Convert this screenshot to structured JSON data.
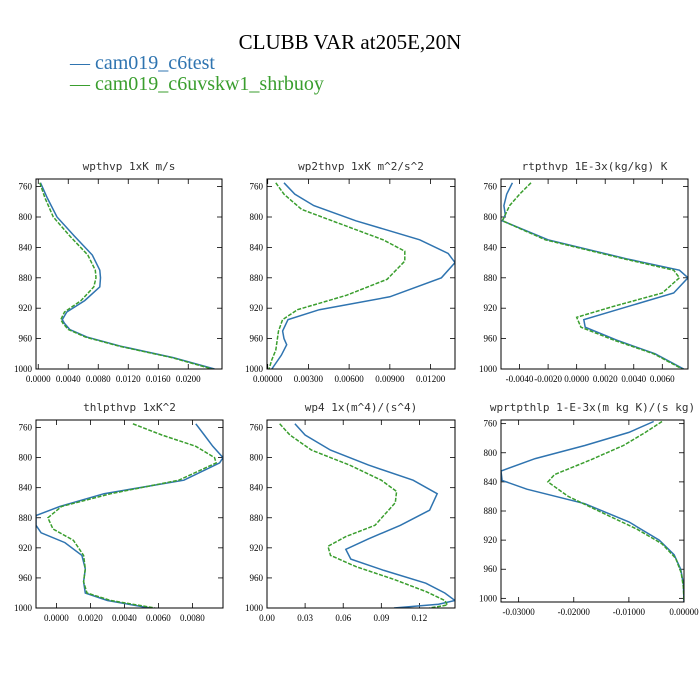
{
  "title": "CLUBB VAR at205E,20N",
  "legend": [
    {
      "label": "cam019_c6test",
      "color": "#2f74b0",
      "dash": "solid"
    },
    {
      "label": "cam019_c6uvskw1_shrbuoy",
      "color": "#3a9e2e",
      "dash": "dashed"
    }
  ],
  "chart_data": [
    {
      "type": "line",
      "title": "wpthvp  1xK m/s",
      "xlim": [
        -0.0003,
        0.0245
      ],
      "ylim": [
        750,
        1000
      ],
      "xticks": [
        0.0,
        0.004,
        0.008,
        0.012,
        0.016,
        0.02
      ],
      "xtick_labels": [
        "0.0000",
        "0.0040",
        "0.0080",
        "0.0120",
        "0.0160",
        "0.0200"
      ],
      "yticks": [
        760,
        800,
        840,
        880,
        920,
        960,
        1000
      ],
      "series": [
        {
          "name": "cam019_c6test",
          "points": [
            [
              0.0003,
              755
            ],
            [
              0.0012,
              775
            ],
            [
              0.0025,
              800
            ],
            [
              0.0048,
              825
            ],
            [
              0.0072,
              850
            ],
            [
              0.0082,
              870
            ],
            [
              0.0083,
              880
            ],
            [
              0.0082,
              892
            ],
            [
              0.0062,
              910
            ],
            [
              0.0038,
              925
            ],
            [
              0.0032,
              935
            ],
            [
              0.0035,
              940
            ],
            [
              0.0042,
              948
            ],
            [
              0.0065,
              958
            ],
            [
              0.011,
              970
            ],
            [
              0.018,
              985
            ],
            [
              0.0235,
              1000
            ]
          ]
        },
        {
          "name": "cam019_c6uvskw1_shrbuoy",
          "points": [
            [
              0.0002,
              755
            ],
            [
              0.0009,
              775
            ],
            [
              0.002,
              800
            ],
            [
              0.0042,
              825
            ],
            [
              0.0066,
              850
            ],
            [
              0.0076,
              870
            ],
            [
              0.0077,
              880
            ],
            [
              0.0074,
              892
            ],
            [
              0.0057,
              910
            ],
            [
              0.0035,
              925
            ],
            [
              0.003,
              935
            ],
            [
              0.0033,
              940
            ],
            [
              0.004,
              948
            ],
            [
              0.0063,
              958
            ],
            [
              0.0108,
              970
            ],
            [
              0.0178,
              985
            ],
            [
              0.0232,
              1000
            ]
          ]
        }
      ]
    },
    {
      "type": "line",
      "title": "wp2thvp  1xK m^2/s^2",
      "xlim": [
        -5e-05,
        0.0138
      ],
      "ylim": [
        750,
        1000
      ],
      "xticks": [
        0.0,
        0.003,
        0.006,
        0.009,
        0.012
      ],
      "xtick_labels": [
        "0.00000",
        "0.00300",
        "0.00600",
        "0.00900",
        "0.01200"
      ],
      "yticks": [
        760,
        800,
        840,
        880,
        920,
        960,
        1000
      ],
      "series": [
        {
          "name": "cam019_c6test",
          "points": [
            [
              0.0012,
              755
            ],
            [
              0.002,
              770
            ],
            [
              0.0034,
              785
            ],
            [
              0.0065,
              805
            ],
            [
              0.0112,
              830
            ],
            [
              0.0133,
              848
            ],
            [
              0.0138,
              860
            ],
            [
              0.0128,
              880
            ],
            [
              0.009,
              905
            ],
            [
              0.0038,
              922
            ],
            [
              0.0015,
              935
            ],
            [
              0.0011,
              950
            ],
            [
              0.0012,
              960
            ],
            [
              0.0014,
              968
            ],
            [
              0.001,
              982
            ],
            [
              0.0003,
              1000
            ]
          ]
        },
        {
          "name": "cam019_c6uvskw1_shrbuoy",
          "points": [
            [
              0.0006,
              755
            ],
            [
              0.0012,
              770
            ],
            [
              0.0025,
              790
            ],
            [
              0.0055,
              810
            ],
            [
              0.0085,
              830
            ],
            [
              0.0101,
              845
            ],
            [
              0.0101,
              858
            ],
            [
              0.0088,
              882
            ],
            [
              0.0058,
              903
            ],
            [
              0.0022,
              922
            ],
            [
              0.0011,
              935
            ],
            [
              0.0008,
              950
            ],
            [
              0.0007,
              962
            ],
            [
              0.0006,
              975
            ],
            [
              0.0003,
              988
            ],
            [
              0.0001,
              1000
            ]
          ]
        }
      ]
    },
    {
      "type": "line",
      "title": "rtpthvp  1E-3x(kg/kg) K",
      "xlim": [
        -0.0053,
        0.0078
      ],
      "ylim": [
        750,
        1000
      ],
      "xticks": [
        -0.004,
        -0.002,
        0.0,
        0.002,
        0.004,
        0.006
      ],
      "xtick_labels": [
        "-0.0040",
        "-0.0020",
        "0.0000",
        "0.0020",
        "0.0040",
        "0.0060"
      ],
      "yticks": [
        760,
        800,
        840,
        880,
        920,
        960,
        1000
      ],
      "series": [
        {
          "name": "cam019_c6test",
          "points": [
            [
              -0.0045,
              755
            ],
            [
              -0.0049,
              770
            ],
            [
              -0.0051,
              785
            ],
            [
              -0.005,
              797
            ],
            [
              -0.0052,
              805
            ],
            [
              -0.002,
              830
            ],
            [
              0.0035,
              855
            ],
            [
              0.0072,
              870
            ],
            [
              0.0078,
              880
            ],
            [
              0.0068,
              900
            ],
            [
              0.0032,
              920
            ],
            [
              0.0005,
              935
            ],
            [
              0.0006,
              945
            ],
            [
              0.0028,
              962
            ],
            [
              0.0055,
              980
            ],
            [
              0.0075,
              1000
            ]
          ]
        },
        {
          "name": "cam019_c6uvskw1_shrbuoy",
          "points": [
            [
              -0.0032,
              755
            ],
            [
              -0.004,
              770
            ],
            [
              -0.0047,
              785
            ],
            [
              -0.005,
              797
            ],
            [
              -0.0052,
              805
            ],
            [
              -0.0022,
              830
            ],
            [
              0.0033,
              855
            ],
            [
              0.0068,
              870
            ],
            [
              0.0072,
              880
            ],
            [
              0.006,
              900
            ],
            [
              0.0025,
              918
            ],
            [
              0.0,
              932
            ],
            [
              0.0003,
              945
            ],
            [
              0.0026,
              962
            ],
            [
              0.0054,
              980
            ],
            [
              0.0074,
              1000
            ]
          ]
        }
      ]
    },
    {
      "type": "line",
      "title": "thlpthvp  1xK^2",
      "xlim": [
        -0.0012,
        0.0098
      ],
      "ylim": [
        750,
        1000
      ],
      "xticks": [
        0.0,
        0.002,
        0.004,
        0.006,
        0.008
      ],
      "xtick_labels": [
        "0.0000",
        "0.0020",
        "0.0040",
        "0.0060",
        "0.0080"
      ],
      "yticks": [
        760,
        800,
        840,
        880,
        920,
        960,
        1000
      ],
      "series": [
        {
          "name": "cam019_c6test",
          "points": [
            [
              0.0082,
              755
            ],
            [
              0.0087,
              770
            ],
            [
              0.0092,
              785
            ],
            [
              0.0098,
              800
            ],
            [
              0.0096,
              807
            ],
            [
              0.0075,
              830
            ],
            [
              0.0028,
              848
            ],
            [
              0.0002,
              865
            ],
            [
              -0.0012,
              877
            ],
            [
              -0.0012,
              890
            ],
            [
              -0.0009,
              900
            ],
            [
              0.0005,
              913
            ],
            [
              0.0015,
              930
            ],
            [
              0.0017,
              948
            ],
            [
              0.0016,
              965
            ],
            [
              0.0017,
              980
            ],
            [
              0.003,
              990
            ],
            [
              0.0055,
              1000
            ]
          ]
        },
        {
          "name": "cam019_c6uvskw1_shrbuoy",
          "points": [
            [
              0.0045,
              755
            ],
            [
              0.0062,
              770
            ],
            [
              0.0082,
              785
            ],
            [
              0.0093,
              800
            ],
            [
              0.0094,
              807
            ],
            [
              0.0072,
              830
            ],
            [
              0.0032,
              848
            ],
            [
              0.0003,
              865
            ],
            [
              -0.0005,
              880
            ],
            [
              -0.0002,
              895
            ],
            [
              0.001,
              910
            ],
            [
              0.0016,
              930
            ],
            [
              0.0017,
              948
            ],
            [
              0.0016,
              965
            ],
            [
              0.0018,
              980
            ],
            [
              0.0032,
              990
            ],
            [
              0.0058,
              1000
            ]
          ]
        }
      ]
    },
    {
      "type": "line",
      "title": "wp4  1x(m^4)/(s^4)",
      "xlim": [
        -0.0,
        0.148
      ],
      "ylim": [
        750,
        1000
      ],
      "xticks": [
        0.0,
        0.03,
        0.06,
        0.09,
        0.12
      ],
      "xtick_labels": [
        "0.00",
        "0.03",
        "0.06",
        "0.09",
        "0.12"
      ],
      "yticks": [
        760,
        800,
        840,
        880,
        920,
        960,
        1000
      ],
      "series": [
        {
          "name": "cam019_c6test",
          "points": [
            [
              0.022,
              755
            ],
            [
              0.03,
              770
            ],
            [
              0.05,
              790
            ],
            [
              0.08,
              810
            ],
            [
              0.115,
              830
            ],
            [
              0.134,
              848
            ],
            [
              0.128,
              870
            ],
            [
              0.105,
              890
            ],
            [
              0.08,
              908
            ],
            [
              0.062,
              922
            ],
            [
              0.066,
              935
            ],
            [
              0.092,
              950
            ],
            [
              0.125,
              967
            ],
            [
              0.14,
              980
            ],
            [
              0.148,
              990
            ],
            [
              0.135,
              995
            ],
            [
              0.1,
              1000
            ]
          ]
        },
        {
          "name": "cam019_c6uvskw1_shrbuoy",
          "points": [
            [
              0.01,
              755
            ],
            [
              0.018,
              770
            ],
            [
              0.035,
              790
            ],
            [
              0.065,
              810
            ],
            [
              0.09,
              830
            ],
            [
              0.102,
              845
            ],
            [
              0.101,
              860
            ],
            [
              0.085,
              890
            ],
            [
              0.062,
              905
            ],
            [
              0.048,
              918
            ],
            [
              0.05,
              930
            ],
            [
              0.07,
              945
            ],
            [
              0.1,
              962
            ],
            [
              0.125,
              978
            ],
            [
              0.14,
              990
            ],
            [
              0.142,
              996
            ],
            [
              0.128,
              1000
            ]
          ]
        }
      ]
    },
    {
      "type": "line",
      "title": "wprtpthlp  1-E-3x(m kg K)/(s kg)",
      "xlim": [
        -0.0332,
        0.0
      ],
      "ylim": [
        755,
        1005
      ],
      "xticks": [
        -0.03,
        -0.02,
        -0.01,
        0.0
      ],
      "xtick_labels": [
        "-0.03000",
        "-0.02000",
        "-0.01000",
        "0.00000"
      ],
      "yticks": [
        760,
        800,
        840,
        880,
        920,
        960,
        1000
      ],
      "series": [
        {
          "name": "cam019_c6test",
          "points": [
            [
              -0.0055,
              757
            ],
            [
              -0.01,
              772
            ],
            [
              -0.018,
              790
            ],
            [
              -0.027,
              808
            ],
            [
              -0.0332,
              825
            ],
            [
              -0.033,
              838
            ],
            [
              -0.0285,
              850
            ],
            [
              -0.018,
              870
            ],
            [
              -0.01,
              895
            ],
            [
              -0.0045,
              920
            ],
            [
              -0.0018,
              940
            ],
            [
              -0.0006,
              960
            ],
            [
              -0.0001,
              980
            ],
            [
              0.0,
              1005
            ]
          ]
        },
        {
          "name": "cam019_c6uvskw1_shrbuoy",
          "points": [
            [
              -0.004,
              757
            ],
            [
              -0.007,
              772
            ],
            [
              -0.011,
              790
            ],
            [
              -0.017,
              810
            ],
            [
              -0.0235,
              830
            ],
            [
              -0.0247,
              840
            ],
            [
              -0.021,
              860
            ],
            [
              -0.0155,
              880
            ],
            [
              -0.0085,
              905
            ],
            [
              -0.004,
              925
            ],
            [
              -0.0015,
              945
            ],
            [
              -0.0005,
              965
            ],
            [
              -0.0001,
              985
            ],
            [
              0.0,
              1005
            ]
          ]
        }
      ]
    }
  ]
}
